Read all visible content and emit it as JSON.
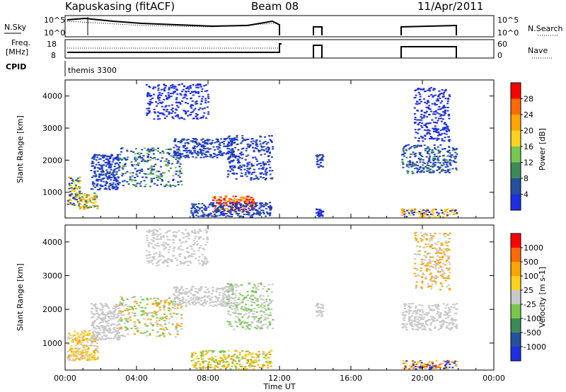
{
  "header": {
    "station": "Kapuskasing (fitACF)",
    "beam": "Beam 08",
    "date": "11/Apr/2011"
  },
  "summary": {
    "nsky_label": "N.Sky",
    "nsky_ticks": [
      "10^5",
      "10^0"
    ],
    "nsearch_label": "N.Search",
    "nsearch_ticks": [
      "10^5",
      "10^0"
    ],
    "freq_label_1": "Freq.",
    "freq_label_2": "[MHz]",
    "freq_ticks": [
      "18",
      "8"
    ],
    "nave_label": "Nave",
    "nave_ticks": [
      "60",
      "0"
    ],
    "cpid_label": "CPID",
    "cpid_value": "themis 3300"
  },
  "chart_data": [
    {
      "type": "heatmap",
      "name": "power-panel",
      "xlabel": "Time UT",
      "ylabel": "Slant Range [km]",
      "xlim": [
        0,
        24
      ],
      "ylim": [
        200,
        4500
      ],
      "x_ticks": [
        "00:00",
        "04:00",
        "08:00",
        "12:00",
        "16:00",
        "20:00",
        "00:00"
      ],
      "x_tick_values": [
        0,
        4,
        8,
        12,
        16,
        20,
        24
      ],
      "y_ticks": [
        "1000",
        "2000",
        "3000",
        "4000"
      ],
      "y_tick_values": [
        1000,
        2000,
        3000,
        4000
      ],
      "colorbar_label": "Power [dB]",
      "colorbar_ticks": [
        "4",
        "8",
        "12",
        "16",
        "20",
        "24",
        "28"
      ],
      "colorbar_colors": [
        "#1f2fe0",
        "#23509f",
        "#3c8a5a",
        "#78c850",
        "#ffd21e",
        "#ffa500",
        "#ff6a00",
        "#ff0000"
      ]
    },
    {
      "type": "heatmap",
      "name": "velocity-panel",
      "xlabel": "Time UT",
      "ylabel": "Slant Range [km]",
      "xlim": [
        0,
        24
      ],
      "ylim": [
        200,
        4500
      ],
      "x_ticks": [
        "00:00",
        "04:00",
        "08:00",
        "12:00",
        "16:00",
        "20:00",
        "00:00"
      ],
      "x_tick_values": [
        0,
        4,
        8,
        12,
        16,
        20,
        24
      ],
      "y_ticks": [
        "1000",
        "2000",
        "3000",
        "4000"
      ],
      "y_tick_values": [
        1000,
        2000,
        3000,
        4000
      ],
      "colorbar_label": "Velocity [m s-1]",
      "colorbar_ticks": [
        "1000",
        "500",
        "100",
        "25",
        "-25",
        "-100",
        "-500",
        "-1000"
      ],
      "colorbar_colors": [
        "#1f2fe0",
        "#23509f",
        "#3c8a5a",
        "#78c850",
        "#c8c8c8",
        "#ffd21e",
        "#ffa500",
        "#ff6a00",
        "#ff0000"
      ]
    }
  ],
  "scatter_regions": {
    "power": [
      {
        "t0": 0.1,
        "t1": 0.8,
        "r0": 600,
        "r1": 1500,
        "colors": [
          "#3c8a5a",
          "#ffd21e",
          "#ffa500",
          "#1f2fe0"
        ]
      },
      {
        "t0": 0.7,
        "t1": 1.8,
        "r0": 500,
        "r1": 1000,
        "colors": [
          "#ffa500",
          "#ffd21e",
          "#3c8a5a"
        ]
      },
      {
        "t0": 1.4,
        "t1": 3.0,
        "r0": 1100,
        "r1": 2200,
        "colors": [
          "#1f2fe0",
          "#23509f"
        ]
      },
      {
        "t0": 3.0,
        "t1": 6.5,
        "r0": 1200,
        "r1": 2400,
        "colors": [
          "#1f2fe0",
          "#3c8a5a",
          "#78c850",
          "#23509f"
        ]
      },
      {
        "t0": 6.0,
        "t1": 9.5,
        "r0": 2100,
        "r1": 2700,
        "colors": [
          "#1f2fe0",
          "#23509f"
        ]
      },
      {
        "t0": 9.0,
        "t1": 11.6,
        "r0": 1400,
        "r1": 2800,
        "colors": [
          "#1f2fe0",
          "#23509f"
        ]
      },
      {
        "t0": 8.2,
        "t1": 10.6,
        "r0": 400,
        "r1": 900,
        "colors": [
          "#ff0000",
          "#ff6a00",
          "#ffa500"
        ]
      },
      {
        "t0": 7.0,
        "t1": 11.5,
        "r0": 250,
        "r1": 700,
        "colors": [
          "#1f2fe0",
          "#23509f"
        ]
      },
      {
        "t0": 4.5,
        "t1": 8.0,
        "r0": 3300,
        "r1": 4400,
        "colors": [
          "#1f2fe0"
        ]
      },
      {
        "t0": 14.0,
        "t1": 14.4,
        "r0": 1800,
        "r1": 2200,
        "colors": [
          "#1f2fe0",
          "#23509f"
        ]
      },
      {
        "t0": 14.0,
        "t1": 14.4,
        "r0": 250,
        "r1": 500,
        "colors": [
          "#1f2fe0"
        ]
      },
      {
        "t0": 18.8,
        "t1": 21.9,
        "r0": 1600,
        "r1": 2500,
        "colors": [
          "#1f2fe0",
          "#23509f",
          "#3c8a5a"
        ]
      },
      {
        "t0": 18.8,
        "t1": 21.9,
        "r0": 250,
        "r1": 500,
        "colors": [
          "#ffa500",
          "#ffd21e",
          "#1f2fe0"
        ]
      },
      {
        "t0": 19.5,
        "t1": 21.5,
        "r0": 2600,
        "r1": 4300,
        "colors": [
          "#1f2fe0"
        ]
      }
    ],
    "velocity": [
      {
        "t0": 0.1,
        "t1": 1.8,
        "r0": 500,
        "r1": 1400,
        "colors": [
          "#ffa500",
          "#ffd21e",
          "#c8c8c8"
        ]
      },
      {
        "t0": 1.4,
        "t1": 3.0,
        "r0": 1100,
        "r1": 2200,
        "colors": [
          "#c8c8c8"
        ]
      },
      {
        "t0": 3.0,
        "t1": 6.5,
        "r0": 1200,
        "r1": 2400,
        "colors": [
          "#c8c8c8",
          "#ffa500",
          "#78c850"
        ]
      },
      {
        "t0": 6.0,
        "t1": 9.5,
        "r0": 2100,
        "r1": 2700,
        "colors": [
          "#c8c8c8"
        ]
      },
      {
        "t0": 9.0,
        "t1": 11.6,
        "r0": 1400,
        "r1": 2800,
        "colors": [
          "#c8c8c8",
          "#78c850"
        ]
      },
      {
        "t0": 7.0,
        "t1": 11.5,
        "r0": 250,
        "r1": 800,
        "colors": [
          "#ffd21e",
          "#ffa500",
          "#78c850"
        ]
      },
      {
        "t0": 4.5,
        "t1": 8.0,
        "r0": 3300,
        "r1": 4400,
        "colors": [
          "#c8c8c8"
        ]
      },
      {
        "t0": 14.0,
        "t1": 14.4,
        "r0": 1800,
        "r1": 2200,
        "colors": [
          "#c8c8c8"
        ]
      },
      {
        "t0": 18.8,
        "t1": 21.9,
        "r0": 1400,
        "r1": 2200,
        "colors": [
          "#c8c8c8"
        ]
      },
      {
        "t0": 18.8,
        "t1": 21.9,
        "r0": 250,
        "r1": 500,
        "colors": [
          "#ff6a00",
          "#ffd21e",
          "#1f2fe0"
        ]
      },
      {
        "t0": 19.5,
        "t1": 21.5,
        "r0": 2600,
        "r1": 4300,
        "colors": [
          "#c8c8c8",
          "#ffa500"
        ]
      }
    ]
  }
}
